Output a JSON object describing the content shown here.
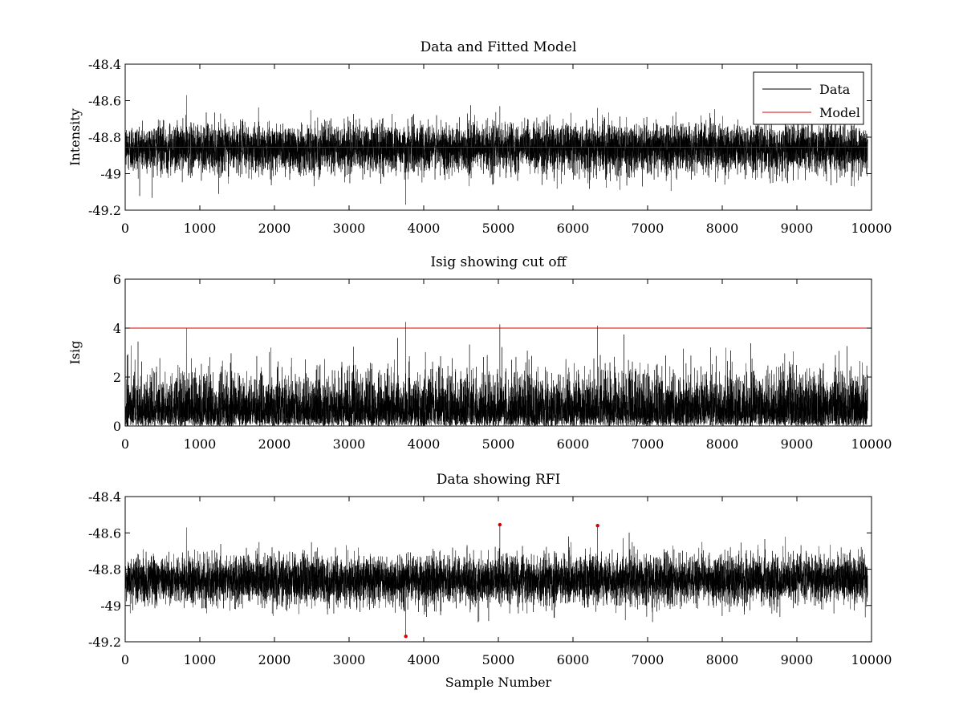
{
  "figure": {
    "background": "#ffffff"
  },
  "chart_data": [
    {
      "type": "line",
      "title": "Data and Fitted Model",
      "xlabel": "",
      "ylabel": "Intensity",
      "xlim": [
        0,
        10000
      ],
      "ylim": [
        -49.2,
        -48.4
      ],
      "xticks": [
        0,
        1000,
        2000,
        3000,
        4000,
        5000,
        6000,
        7000,
        8000,
        9000,
        10000
      ],
      "yticks": [
        -49.2,
        -49,
        -48.8,
        -48.6,
        -48.4
      ],
      "ytick_labels": [
        "-49.2",
        "-49",
        "-48.8",
        "-48.6",
        "-48.4"
      ],
      "legend": {
        "position": "top-right",
        "entries": [
          "Data",
          "Model"
        ]
      },
      "series": [
        {
          "name": "Data",
          "color": "#000000",
          "kind": "noise",
          "n": 9950,
          "mean": -48.86,
          "std": 0.065,
          "spikes": [
            {
              "x": 3760,
              "y": -49.17
            },
            {
              "x": 5020,
              "y": -48.63
            },
            {
              "x": 6330,
              "y": -48.64
            },
            {
              "x": 820,
              "y": -48.57
            }
          ]
        },
        {
          "name": "Model",
          "color": "#d40000",
          "kind": "constant",
          "x": [
            0,
            9950
          ],
          "y": [
            -48.855,
            -48.855
          ]
        }
      ]
    },
    {
      "type": "line",
      "title": "Isig showing cut off",
      "xlabel": "",
      "ylabel": "Isig",
      "xlim": [
        0,
        10000
      ],
      "ylim": [
        0,
        6
      ],
      "xticks": [
        0,
        1000,
        2000,
        3000,
        4000,
        5000,
        6000,
        7000,
        8000,
        9000,
        10000
      ],
      "yticks": [
        0,
        2,
        4,
        6
      ],
      "ytick_labels": [
        "0",
        "2",
        "4",
        "6"
      ],
      "series": [
        {
          "name": "Isig",
          "color": "#000000",
          "kind": "absnoise",
          "n": 9950,
          "scale": 0.95,
          "spikes": [
            {
              "x": 820,
              "y": 4.0
            },
            {
              "x": 3760,
              "y": 4.25
            },
            {
              "x": 5020,
              "y": 4.15
            },
            {
              "x": 6330,
              "y": 4.1
            },
            {
              "x": 3650,
              "y": 3.6
            }
          ]
        },
        {
          "name": "Cut off",
          "color": "#d40000",
          "kind": "constant",
          "x": [
            0,
            10000
          ],
          "y": [
            4,
            4
          ]
        }
      ]
    },
    {
      "type": "line",
      "title": "Data showing RFI",
      "xlabel": "Sample Number",
      "ylabel": "",
      "xlim": [
        0,
        10000
      ],
      "ylim": [
        -49.2,
        -48.4
      ],
      "xticks": [
        0,
        1000,
        2000,
        3000,
        4000,
        5000,
        6000,
        7000,
        8000,
        9000,
        10000
      ],
      "yticks": [
        -49.2,
        -49,
        -48.8,
        -48.6,
        -48.4
      ],
      "ytick_labels": [
        "-49.2",
        "-49",
        "-48.8",
        "-48.6",
        "-48.4"
      ],
      "series": [
        {
          "name": "Data",
          "color": "#000000",
          "kind": "noise",
          "n": 9950,
          "mean": -48.86,
          "std": 0.065,
          "spikes": [
            {
              "x": 3760,
              "y": -49.17
            },
            {
              "x": 5020,
              "y": -48.555
            },
            {
              "x": 6330,
              "y": -48.56
            },
            {
              "x": 820,
              "y": -48.57
            }
          ]
        },
        {
          "name": "RFI",
          "color": "#d40000",
          "kind": "markers",
          "points": [
            {
              "x": 3760,
              "y": -49.17
            },
            {
              "x": 5020,
              "y": -48.555
            },
            {
              "x": 6330,
              "y": -48.56
            }
          ]
        }
      ]
    }
  ]
}
